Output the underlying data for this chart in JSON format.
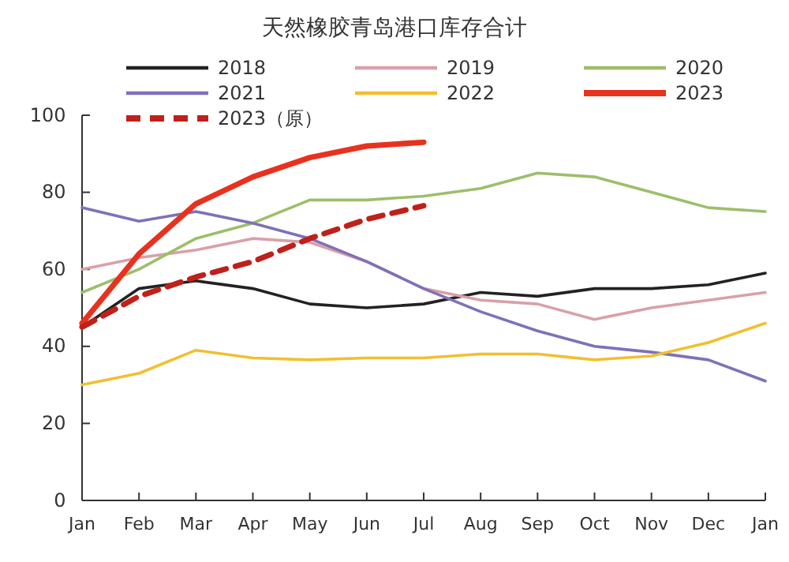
{
  "chart_data": {
    "type": "line",
    "title": "天然橡胶青岛港口库存合计",
    "legend": "top",
    "categories": [
      "Jan",
      "Feb",
      "Mar",
      "Apr",
      "May",
      "Jun",
      "Jul",
      "Aug",
      "Sep",
      "Oct",
      "Nov",
      "Dec",
      "Jan"
    ],
    "ylim": [
      0,
      100
    ],
    "yticks": [
      0,
      20,
      40,
      60,
      80,
      100
    ],
    "grid": false,
    "series": [
      {
        "name": "2018",
        "color": "#222222",
        "values": [
          45,
          55,
          57,
          55,
          51,
          50,
          51,
          54,
          53,
          55,
          55,
          56,
          59
        ]
      },
      {
        "name": "2019",
        "color": "#d9a0a8",
        "values": [
          60,
          63,
          65,
          68,
          67,
          62,
          55,
          52,
          51,
          47,
          50,
          52,
          54
        ]
      },
      {
        "name": "2020",
        "color": "#9cbf6a",
        "values": [
          54,
          60,
          68,
          72,
          78,
          78,
          79,
          81,
          85,
          84,
          80,
          76,
          75
        ]
      },
      {
        "name": "2021",
        "color": "#8070b8",
        "values": [
          76,
          72.5,
          75,
          72,
          68,
          62,
          55,
          49,
          44,
          40,
          38.5,
          36.5,
          31
        ]
      },
      {
        "name": "2022",
        "color": "#f0c030",
        "values": [
          30,
          33,
          39,
          37,
          36.5,
          37,
          37,
          38,
          38,
          36.5,
          37.5,
          41,
          46
        ]
      },
      {
        "name": "2023",
        "color": "#e8321e",
        "values": [
          46,
          64,
          77,
          84,
          89,
          92,
          93,
          null,
          null,
          null,
          null,
          null,
          null
        ]
      },
      {
        "name": "2023（原）",
        "color": "#c0201a",
        "line_style": "dashed",
        "values": [
          45,
          53,
          58,
          62,
          68,
          73,
          76.5,
          null,
          null,
          null,
          null,
          null,
          null
        ]
      }
    ]
  }
}
